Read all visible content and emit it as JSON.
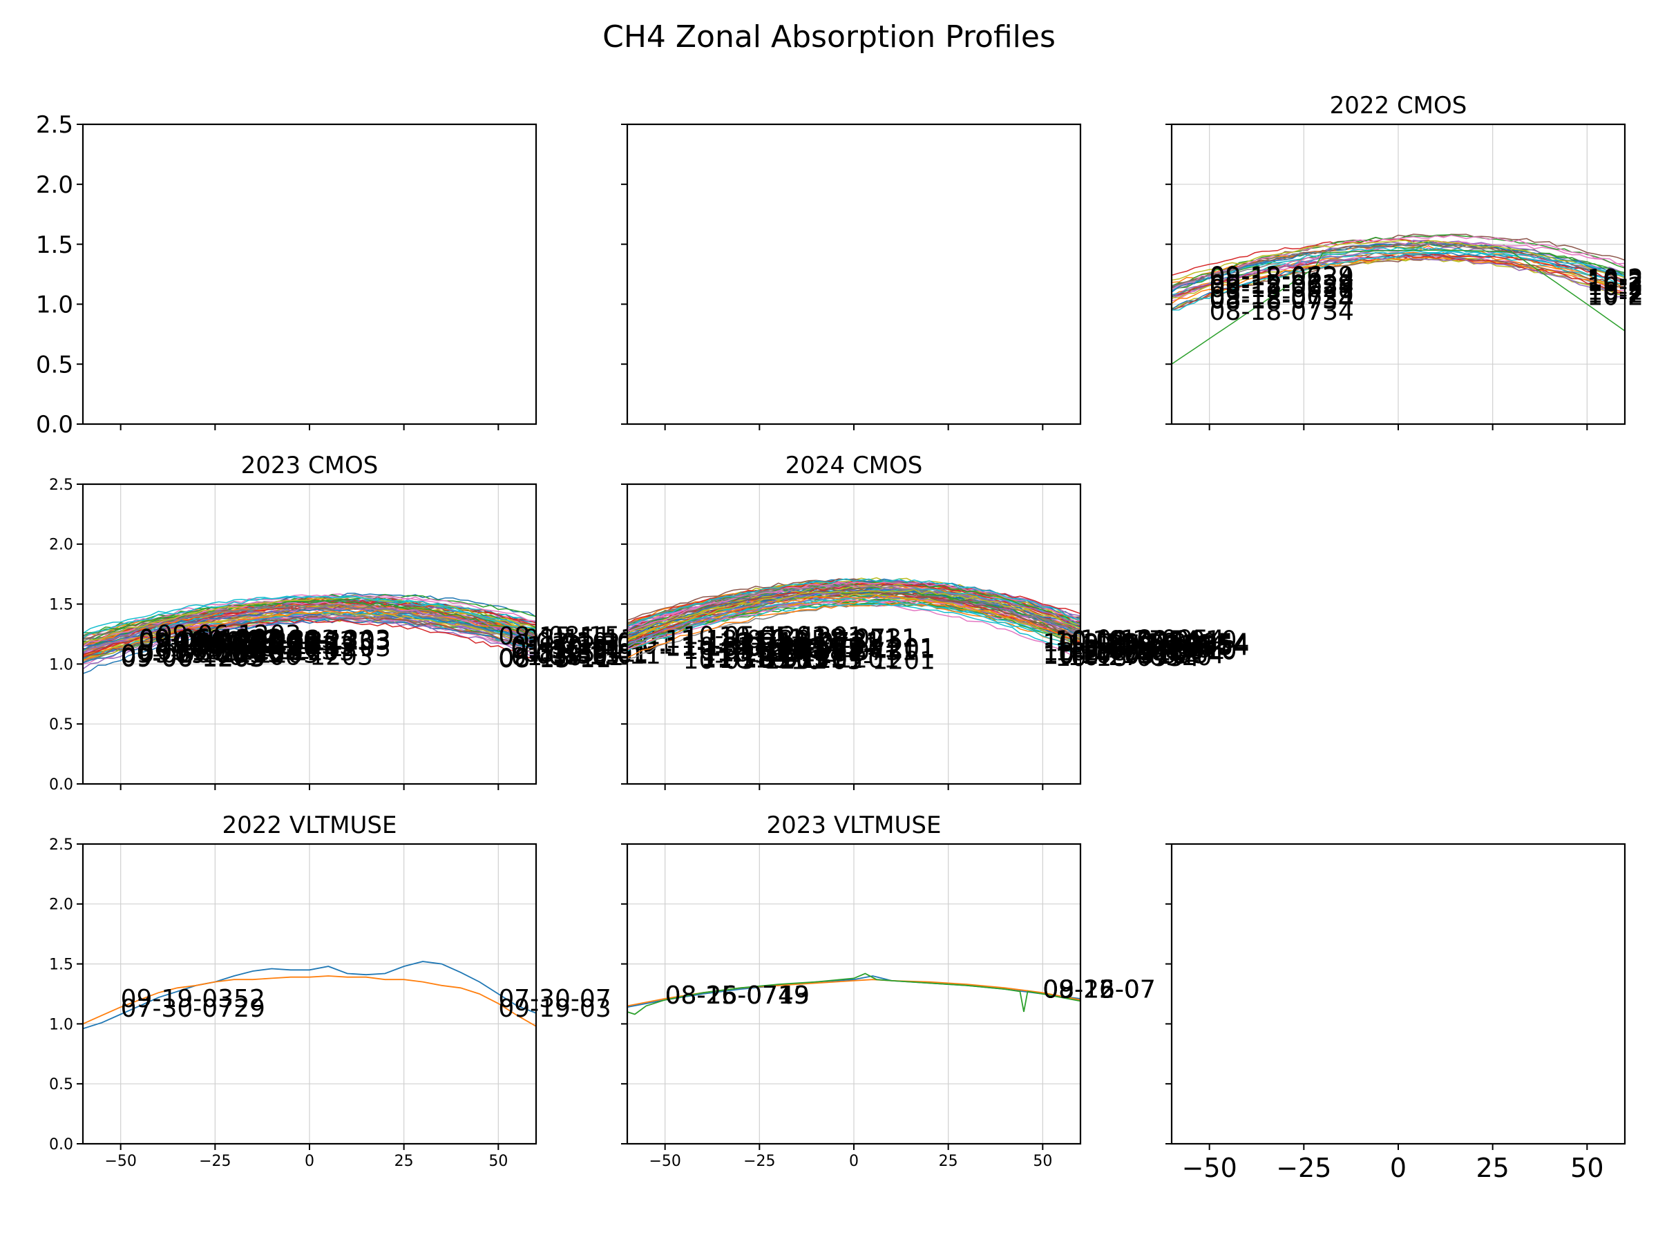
{
  "figure": {
    "suptitle": "CH4 Zonal Absorption Profiles"
  },
  "chart_data": [
    {
      "type": "line",
      "title": "",
      "empty": true,
      "xlim": [
        -60,
        60
      ],
      "ylim": [
        0,
        2.5
      ],
      "xticks": [
        "−50",
        "−25",
        "0",
        "25",
        "50"
      ],
      "yticks": [
        "0.0",
        "0.5",
        "1.0",
        "1.5",
        "2.0",
        "2.5"
      ],
      "grid": false
    },
    {
      "type": "line",
      "title": "",
      "empty": true,
      "xlim": [
        -60,
        60
      ],
      "ylim": [
        0,
        2.5
      ],
      "xticks": [
        "−50",
        "−25",
        "0",
        "25",
        "50"
      ],
      "yticks": [
        "0.0",
        "0.5",
        "1.0",
        "1.5",
        "2.0",
        "2.5"
      ],
      "grid": false
    },
    {
      "type": "line",
      "title": "2022 CMOS",
      "xlim": [
        -60,
        60
      ],
      "ylim": [
        0,
        2.5
      ],
      "xticks": [
        "−50",
        "−25",
        "0",
        "25",
        "50"
      ],
      "yticks": [
        "0.0",
        "0.5",
        "1.0",
        "1.5",
        "2.0",
        "2.5"
      ],
      "grid": true,
      "series_count": 30,
      "profile": {
        "center": 8,
        "peak": 1.47,
        "edge_left": 1.12,
        "edge_right": 1.05
      },
      "left_labels": [
        "08-18-0734",
        "09-12-0629"
      ],
      "right_labels": [
        "10-2"
      ]
    },
    {
      "type": "line",
      "title": "2023 CMOS",
      "xlim": [
        -60,
        60
      ],
      "ylim": [
        0,
        2.5
      ],
      "xticks": [
        "−50",
        "−25",
        "0",
        "25",
        "50"
      ],
      "yticks": [
        "0.0",
        "0.5",
        "1.0",
        "1.5",
        "2.0",
        "2.5"
      ],
      "grid": true,
      "series_count": 70,
      "profile": {
        "center": 8,
        "peak": 1.47,
        "edge_left": 1.15,
        "edge_right": 1.08
      },
      "left_labels": [
        "09-06-1203"
      ],
      "right_labels": [
        "08-15-11",
        "01-30-01"
      ]
    },
    {
      "type": "line",
      "title": "2024 CMOS",
      "xlim": [
        -60,
        60
      ],
      "ylim": [
        0,
        2.5
      ],
      "xticks": [
        "−50",
        "−25",
        "0",
        "25",
        "50"
      ],
      "yticks": [
        "0.0",
        "0.5",
        "1.0",
        "1.5",
        "2.0",
        "2.5"
      ],
      "grid": true,
      "series_count": 70,
      "profile": {
        "center": 5,
        "peak": 1.6,
        "edge_left": 1.22,
        "edge_right": 1.12
      },
      "left_labels": [
        "11-18-0731",
        "10-05-1201"
      ],
      "right_labels": [
        "10-27-0910",
        "10-18-0954"
      ]
    },
    {
      "type": "line",
      "title": "2022 VLTMUSE",
      "xlim": [
        -60,
        60
      ],
      "ylim": [
        0,
        2.5
      ],
      "xticks": [
        "−50",
        "−25",
        "0",
        "25",
        "50"
      ],
      "yticks": [
        "0.0",
        "0.5",
        "1.0",
        "1.5",
        "2.0",
        "2.5"
      ],
      "grid": true,
      "series": [
        {
          "x": [
            -60,
            -55,
            -50,
            -45,
            -40,
            -35,
            -30,
            -25,
            -20,
            -15,
            -10,
            -5,
            0,
            5,
            10,
            15,
            20,
            25,
            30,
            35,
            40,
            45,
            50,
            55,
            60
          ],
          "y": [
            0.96,
            1.01,
            1.08,
            1.15,
            1.22,
            1.27,
            1.32,
            1.35,
            1.4,
            1.44,
            1.46,
            1.45,
            1.45,
            1.48,
            1.42,
            1.41,
            1.42,
            1.48,
            1.52,
            1.5,
            1.43,
            1.35,
            1.25,
            1.15,
            1.09
          ]
        },
        {
          "x": [
            -60,
            -55,
            -50,
            -45,
            -40,
            -35,
            -30,
            -25,
            -20,
            -15,
            -10,
            -5,
            0,
            5,
            10,
            15,
            20,
            25,
            30,
            35,
            40,
            45,
            50,
            55,
            60
          ],
          "y": [
            1.0,
            1.07,
            1.14,
            1.2,
            1.26,
            1.3,
            1.32,
            1.35,
            1.37,
            1.37,
            1.38,
            1.39,
            1.39,
            1.4,
            1.39,
            1.39,
            1.37,
            1.37,
            1.35,
            1.32,
            1.3,
            1.25,
            1.17,
            1.07,
            0.98
          ]
        }
      ],
      "left_labels": [
        "09-19-0352",
        "07-30-0729"
      ],
      "right_labels": [
        "07-30-07",
        "09-19-03"
      ]
    },
    {
      "type": "line",
      "title": "2023 VLTMUSE",
      "xlim": [
        -60,
        60
      ],
      "ylim": [
        0,
        2.5
      ],
      "xticks": [
        "−50",
        "−25",
        "0",
        "25",
        "50"
      ],
      "yticks": [
        "0.0",
        "0.5",
        "1.0",
        "1.5",
        "2.0",
        "2.5"
      ],
      "grid": true,
      "series": [
        {
          "x": [
            -60,
            -50,
            -40,
            -30,
            -20,
            -10,
            0,
            5,
            10,
            20,
            30,
            40,
            45,
            50,
            60
          ],
          "y": [
            1.14,
            1.2,
            1.25,
            1.29,
            1.32,
            1.35,
            1.37,
            1.4,
            1.36,
            1.34,
            1.32,
            1.29,
            1.27,
            1.25,
            1.21
          ]
        },
        {
          "x": [
            -60,
            -50,
            -40,
            -30,
            -20,
            -10,
            0,
            5,
            10,
            20,
            30,
            40,
            45,
            50,
            60
          ],
          "y": [
            1.15,
            1.21,
            1.26,
            1.3,
            1.32,
            1.34,
            1.36,
            1.37,
            1.36,
            1.35,
            1.33,
            1.3,
            1.28,
            1.26,
            1.2
          ]
        },
        {
          "x": [
            -60,
            -58,
            -55,
            -50,
            -40,
            -30,
            -20,
            -10,
            0,
            3,
            6,
            10,
            20,
            30,
            40,
            44,
            45,
            46,
            50,
            60
          ],
          "y": [
            1.1,
            1.08,
            1.15,
            1.2,
            1.26,
            1.3,
            1.33,
            1.35,
            1.38,
            1.42,
            1.37,
            1.36,
            1.34,
            1.32,
            1.29,
            1.27,
            1.1,
            1.27,
            1.25,
            1.19
          ]
        }
      ],
      "left_labels": [
        "08-15-0719",
        "08-26-0743",
        "08-16-0749"
      ],
      "right_labels": [
        "09-15-07",
        "08-12-07",
        "08-26-07"
      ]
    },
    {
      "type": "line",
      "title": "",
      "empty": true,
      "xlim": [
        -60,
        60
      ],
      "ylim": [
        0,
        2.5
      ],
      "xticks": [
        "−50",
        "−25",
        "0",
        "25",
        "50"
      ],
      "yticks": [
        "0.0",
        "0.5",
        "1.0",
        "1.5",
        "2.0",
        "2.5"
      ],
      "grid": false
    }
  ]
}
